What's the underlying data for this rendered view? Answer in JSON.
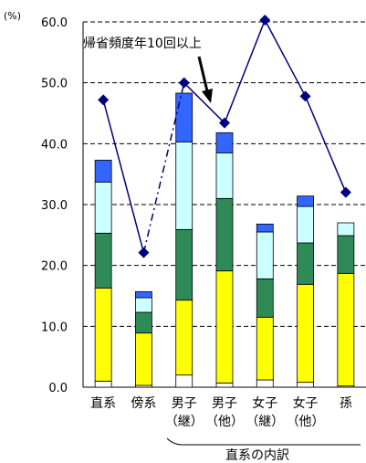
{
  "chart_data": {
    "type": "bar",
    "y_unit": "(%)",
    "ylim": [
      0,
      60
    ],
    "yticks": [
      "0.0",
      "10.0",
      "20.0",
      "30.0",
      "40.0",
      "50.0",
      "60.0"
    ],
    "grid": "dashed horizontal",
    "categories": [
      {
        "line1": "直系",
        "line2": ""
      },
      {
        "line1": "傍系",
        "line2": ""
      },
      {
        "line1": "男子",
        "line2": "（継）"
      },
      {
        "line1": "男子",
        "line2": "（他）"
      },
      {
        "line1": "女子",
        "line2": "（継）"
      },
      {
        "line1": "女子",
        "line2": "（他）"
      },
      {
        "line1": "孫",
        "line2": ""
      }
    ],
    "stack_series": [
      {
        "color": "#ffffff",
        "values": [
          1.0,
          0.3,
          2.0,
          0.7,
          1.2,
          0.8,
          0.2
        ]
      },
      {
        "color": "#ffff00",
        "values": [
          15.3,
          8.6,
          12.3,
          18.4,
          10.3,
          16.1,
          18.5
        ]
      },
      {
        "color": "#2e8b57",
        "values": [
          9.0,
          3.4,
          11.6,
          11.9,
          6.3,
          6.8,
          6.2
        ]
      },
      {
        "color": "#ccffff",
        "values": [
          8.4,
          2.4,
          14.4,
          7.5,
          7.7,
          6.0,
          2.1
        ]
      },
      {
        "color": "#3366ff",
        "values": [
          3.6,
          1.0,
          8.0,
          3.3,
          1.3,
          1.7,
          0.0
        ]
      }
    ],
    "line_series": {
      "color": "#000080",
      "values": [
        47.2,
        22.1,
        50.0,
        43.4,
        60.3,
        47.8,
        32.0
      ]
    },
    "annotation": "帰省頻度年10回以上",
    "group_label": "直系の内訳"
  }
}
